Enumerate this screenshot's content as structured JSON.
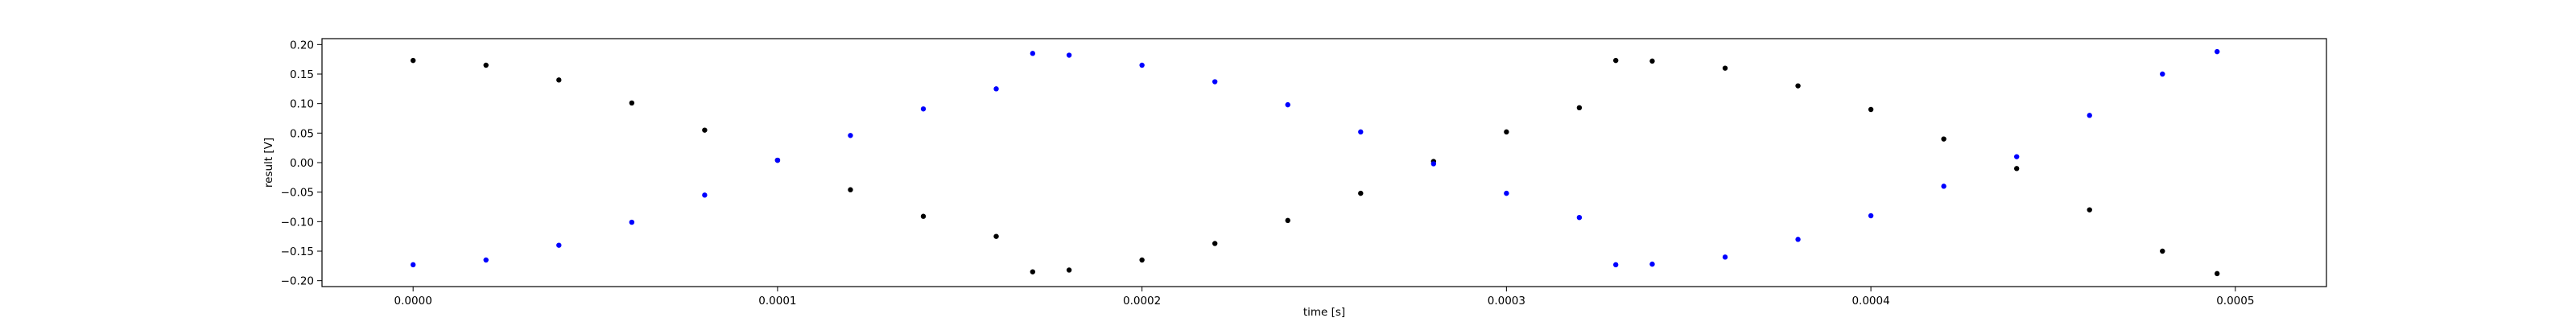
{
  "chart_data": {
    "type": "scatter",
    "title": "",
    "xlabel": "time [s]",
    "ylabel": "result [V]",
    "xlim": [
      -2.5e-05,
      0.000525
    ],
    "ylim": [
      -0.21,
      0.21
    ],
    "grid": false,
    "xticks": [
      0.0,
      0.0001,
      0.0002,
      0.0003,
      0.0004,
      0.0005
    ],
    "xtick_labels": [
      "0.0000",
      "0.0001",
      "0.0002",
      "0.0003",
      "0.0004",
      "0.0005"
    ],
    "yticks": [
      0.2,
      0.15,
      0.1,
      0.05,
      0.0,
      -0.05,
      -0.1,
      -0.15,
      -0.2
    ],
    "ytick_labels": [
      "0.20",
      "0.15",
      "0.10",
      "0.05",
      "0.00",
      "−0.05",
      "−0.10",
      "−0.15",
      "−0.20"
    ],
    "series": [
      {
        "color": "#000000",
        "marker": "dot",
        "x": [
          0.0,
          2e-05,
          4e-05,
          6e-05,
          8e-05,
          0.0001,
          0.00012,
          0.00014,
          0.00016,
          0.00017,
          0.00018,
          0.0002,
          0.00022,
          0.00024,
          0.00026,
          0.00028,
          0.0003,
          0.00032,
          0.00033,
          0.00034,
          0.00036,
          0.00038,
          0.0004,
          0.00042,
          0.00044,
          0.00046,
          0.00048,
          0.000495
        ],
        "y": [
          0.173,
          0.165,
          0.14,
          0.101,
          0.055,
          0.004,
          -0.046,
          -0.091,
          -0.125,
          -0.185,
          -0.182,
          -0.165,
          -0.137,
          -0.098,
          -0.052,
          0.002,
          0.052,
          0.093,
          0.173,
          0.172,
          0.16,
          0.13,
          0.09,
          0.04,
          -0.01,
          -0.08,
          -0.15,
          -0.188
        ]
      },
      {
        "color": "#0000ff",
        "marker": "dot",
        "x": [
          0.0,
          2e-05,
          4e-05,
          6e-05,
          8e-05,
          0.0001,
          0.00012,
          0.00014,
          0.00016,
          0.00017,
          0.00018,
          0.0002,
          0.00022,
          0.00024,
          0.00026,
          0.00028,
          0.0003,
          0.00032,
          0.00033,
          0.00034,
          0.00036,
          0.00038,
          0.0004,
          0.00042,
          0.00044,
          0.00046,
          0.00048,
          0.000495
        ],
        "y": [
          -0.173,
          -0.165,
          -0.14,
          -0.101,
          -0.055,
          0.004,
          0.046,
          0.091,
          0.125,
          0.185,
          0.182,
          0.165,
          0.137,
          0.098,
          0.052,
          -0.002,
          -0.052,
          -0.093,
          -0.173,
          -0.172,
          -0.16,
          -0.13,
          -0.09,
          -0.04,
          0.01,
          0.08,
          0.15,
          0.188
        ]
      }
    ]
  }
}
